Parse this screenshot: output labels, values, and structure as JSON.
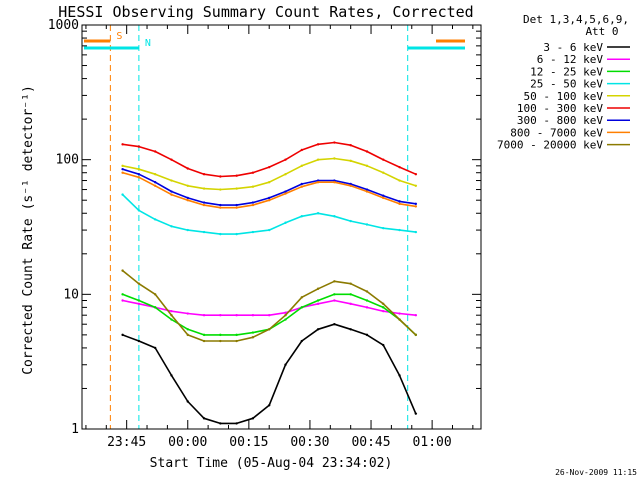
{
  "chart_data": {
    "type": "line",
    "title": "HESSI Observing Summary Count Rates, Corrected",
    "xlabel": "Start Time (05-Aug-04 23:34:02)",
    "ylabel": "Corrected Count Rate (s⁻¹ detector⁻¹)",
    "yscale": "log",
    "ylim": [
      1,
      1000
    ],
    "xlim": [
      "23:34:02",
      "01:12:00"
    ],
    "x_ticks": [
      "23:45",
      "00:00",
      "00:15",
      "00:30",
      "00:45",
      "01:00"
    ],
    "y_ticks": [
      "1",
      "10",
      "100",
      "1000"
    ],
    "grid": false,
    "legend": {
      "position": "right",
      "header": [
        "Det 1,3,4,5,6,9,",
        "Att 0"
      ]
    },
    "series": [
      {
        "name": "3 - 6 keV",
        "color": "#000000",
        "x": [
          "23:44",
          "23:48",
          "23:52",
          "23:56",
          "00:00",
          "00:04",
          "00:08",
          "00:12",
          "00:16",
          "00:20",
          "00:24",
          "00:28",
          "00:32",
          "00:36",
          "00:40",
          "00:44",
          "00:48",
          "00:52",
          "00:56"
        ],
        "values": [
          5,
          4.5,
          4,
          2.5,
          1.6,
          1.2,
          1.1,
          1.1,
          1.2,
          1.5,
          3,
          4.5,
          5.5,
          6,
          5.5,
          5,
          4.2,
          2.5,
          1.3
        ]
      },
      {
        "name": "6 - 12 keV",
        "color": "#ff00ff",
        "x": [
          "23:44",
          "23:48",
          "23:52",
          "23:56",
          "00:00",
          "00:04",
          "00:08",
          "00:12",
          "00:16",
          "00:20",
          "00:24",
          "00:28",
          "00:32",
          "00:36",
          "00:40",
          "00:44",
          "00:48",
          "00:52",
          "00:56"
        ],
        "values": [
          9,
          8.5,
          8,
          7.5,
          7.2,
          7.0,
          7.0,
          7.0,
          7.0,
          7.0,
          7.3,
          8.0,
          8.5,
          9.0,
          8.5,
          8.0,
          7.5,
          7.2,
          7.0
        ]
      },
      {
        "name": "12 - 25 keV",
        "color": "#00dd00",
        "x": [
          "23:44",
          "23:48",
          "23:52",
          "23:56",
          "00:00",
          "00:04",
          "00:08",
          "00:12",
          "00:16",
          "00:20",
          "00:24",
          "00:28",
          "00:32",
          "00:36",
          "00:40",
          "00:44",
          "00:48",
          "00:52",
          "00:56"
        ],
        "values": [
          10,
          9,
          8,
          6.5,
          5.5,
          5,
          5,
          5,
          5.2,
          5.5,
          6.5,
          8,
          9,
          10,
          10,
          9,
          8,
          6.5,
          5
        ]
      },
      {
        "name": "25 - 50 keV",
        "color": "#00e5e5",
        "x": [
          "23:44",
          "23:48",
          "23:52",
          "23:56",
          "00:00",
          "00:04",
          "00:08",
          "00:12",
          "00:16",
          "00:20",
          "00:24",
          "00:28",
          "00:32",
          "00:36",
          "00:40",
          "00:44",
          "00:48",
          "00:52",
          "00:56"
        ],
        "values": [
          55,
          42,
          36,
          32,
          30,
          29,
          28,
          28,
          29,
          30,
          34,
          38,
          40,
          38,
          35,
          33,
          31,
          30,
          29
        ]
      },
      {
        "name": "50 - 100 keV",
        "color": "#d4d400",
        "x": [
          "23:44",
          "23:48",
          "23:52",
          "23:56",
          "00:00",
          "00:04",
          "00:08",
          "00:12",
          "00:16",
          "00:20",
          "00:24",
          "00:28",
          "00:32",
          "00:36",
          "00:40",
          "00:44",
          "00:48",
          "00:52",
          "00:56"
        ],
        "values": [
          90,
          85,
          78,
          70,
          64,
          61,
          60,
          61,
          63,
          68,
          78,
          90,
          100,
          102,
          98,
          90,
          80,
          70,
          64
        ]
      },
      {
        "name": "100 - 300 keV",
        "color": "#ee0000",
        "x": [
          "23:44",
          "23:48",
          "23:52",
          "23:56",
          "00:00",
          "00:04",
          "00:08",
          "00:12",
          "00:16",
          "00:20",
          "00:24",
          "00:28",
          "00:32",
          "00:36",
          "00:40",
          "00:44",
          "00:48",
          "00:52",
          "00:56"
        ],
        "values": [
          130,
          125,
          115,
          100,
          86,
          78,
          75,
          76,
          80,
          88,
          100,
          118,
          130,
          134,
          128,
          115,
          100,
          88,
          78
        ]
      },
      {
        "name": "300 - 800 keV",
        "color": "#0000dd",
        "x": [
          "23:44",
          "23:48",
          "23:52",
          "23:56",
          "00:00",
          "00:04",
          "00:08",
          "00:12",
          "00:16",
          "00:20",
          "00:24",
          "00:28",
          "00:32",
          "00:36",
          "00:40",
          "00:44",
          "00:48",
          "00:52",
          "00:56"
        ],
        "values": [
          85,
          78,
          68,
          58,
          52,
          48,
          46,
          46,
          48,
          52,
          58,
          66,
          70,
          70,
          66,
          60,
          54,
          49,
          47
        ]
      },
      {
        "name": "800 - 7000 keV",
        "color": "#ff7f00",
        "x": [
          "23:44",
          "23:48",
          "23:52",
          "23:56",
          "00:00",
          "00:04",
          "00:08",
          "00:12",
          "00:16",
          "00:20",
          "00:24",
          "00:28",
          "00:32",
          "00:36",
          "00:40",
          "00:44",
          "00:48",
          "00:52",
          "00:56"
        ],
        "values": [
          80,
          74,
          64,
          55,
          50,
          46,
          44,
          44,
          46,
          50,
          56,
          63,
          68,
          68,
          64,
          58,
          52,
          47,
          45
        ]
      },
      {
        "name": "7000 - 20000 keV",
        "color": "#8b7a00",
        "x": [
          "23:44",
          "23:48",
          "23:52",
          "23:56",
          "00:00",
          "00:04",
          "00:08",
          "00:12",
          "00:16",
          "00:20",
          "00:24",
          "00:28",
          "00:32",
          "00:36",
          "00:40",
          "00:44",
          "00:48",
          "00:52",
          "00:56"
        ],
        "values": [
          15,
          12,
          10,
          7,
          5,
          4.5,
          4.5,
          4.5,
          4.8,
          5.5,
          7,
          9.5,
          11,
          12.5,
          12,
          10.5,
          8.5,
          6.5,
          5
        ]
      }
    ],
    "annotations": [
      {
        "label": "S",
        "color": "#ff7f00",
        "style": "dashed-vertical",
        "x": [
          "23:41",
          "01:12"
        ]
      },
      {
        "label": "N",
        "color": "#00e5e5",
        "style": "dashed-vertical",
        "x": [
          "23:48",
          "00:54"
        ]
      }
    ]
  },
  "footer": {
    "date_stamp": "26-Nov-2009 11:15"
  }
}
